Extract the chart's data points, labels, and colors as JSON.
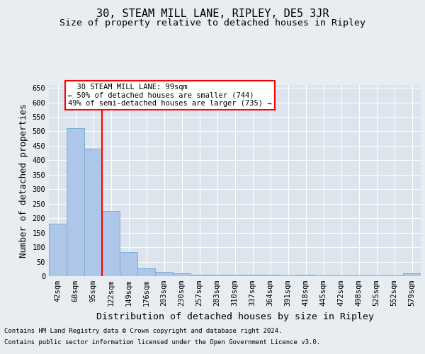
{
  "title": "30, STEAM MILL LANE, RIPLEY, DE5 3JR",
  "subtitle": "Size of property relative to detached houses in Ripley",
  "xlabel": "Distribution of detached houses by size in Ripley",
  "ylabel": "Number of detached properties",
  "footer_line1": "Contains HM Land Registry data © Crown copyright and database right 2024.",
  "footer_line2": "Contains public sector information licensed under the Open Government Licence v3.0.",
  "categories": [
    "42sqm",
    "68sqm",
    "95sqm",
    "122sqm",
    "149sqm",
    "176sqm",
    "203sqm",
    "230sqm",
    "257sqm",
    "283sqm",
    "310sqm",
    "337sqm",
    "364sqm",
    "391sqm",
    "418sqm",
    "445sqm",
    "472sqm",
    "498sqm",
    "525sqm",
    "552sqm",
    "579sqm"
  ],
  "values": [
    182,
    510,
    441,
    225,
    83,
    27,
    15,
    9,
    5,
    5,
    5,
    5,
    5,
    2,
    5,
    2,
    2,
    2,
    2,
    2,
    9
  ],
  "bar_color": "#aec6e8",
  "bar_edge_color": "#7aafd4",
  "reference_line_x": 2,
  "reference_line_color": "red",
  "annotation_text": "  30 STEAM MILL LANE: 99sqm\n← 50% of detached houses are smaller (744)\n49% of semi-detached houses are larger (735) →",
  "annotation_box_color": "white",
  "annotation_box_edge_color": "red",
  "ylim": [
    0,
    660
  ],
  "yticks": [
    0,
    50,
    100,
    150,
    200,
    250,
    300,
    350,
    400,
    450,
    500,
    550,
    600,
    650
  ],
  "background_color": "#e8edf2",
  "plot_background_color": "#dce4ed",
  "grid_color": "white",
  "title_fontsize": 11,
  "subtitle_fontsize": 9.5,
  "axis_label_fontsize": 9,
  "tick_fontsize": 7.5
}
